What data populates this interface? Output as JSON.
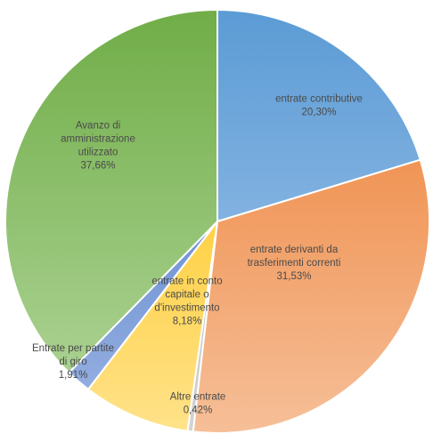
{
  "chart_data": {
    "type": "pie",
    "title": "",
    "slices": [
      {
        "name": "entrate contributive",
        "value": 20.3,
        "value_label": "20,30%",
        "label_lines": [
          "entrate contributive"
        ],
        "color": "#5b9bd5",
        "color_light": "#a9c9ec"
      },
      {
        "name": "entrate derivanti da trasferimenti correnti",
        "value": 31.53,
        "value_label": "31,53%",
        "label_lines": [
          "entrate derivanti da",
          "trasferimenti correnti"
        ],
        "color": "#ed7d31",
        "color_light": "#f6bf98"
      },
      {
        "name": "Altre entrate",
        "value": 0.42,
        "value_label": "0,42%",
        "label_lines": [
          "Altre entrate"
        ],
        "color": "#a5a5a5",
        "color_light": "#d4d4d4"
      },
      {
        "name": "entrate in conto capitale o d'investimento",
        "value": 8.18,
        "value_label": "8,18%",
        "label_lines": [
          "entrate in conto",
          "capitale o",
          "d'investimento"
        ],
        "color": "#ffc000",
        "color_light": "#ffe28a"
      },
      {
        "name": "Entrate per partite di giro",
        "value": 1.91,
        "value_label": "1,91%",
        "label_lines": [
          "Entrate per partite",
          "di giro"
        ],
        "color": "#4472c4",
        "color_light": "#9bb4e3"
      },
      {
        "name": "Avanzo di amministrazione utilizzato",
        "value": 37.66,
        "value_label": "37,66%",
        "label_lines": [
          "Avanzo di",
          "amministrazione",
          "utilizzato"
        ],
        "color": "#70ad47",
        "color_light": "#b3d79d"
      }
    ],
    "start_angle_deg": 0,
    "direction": "clockwise"
  }
}
